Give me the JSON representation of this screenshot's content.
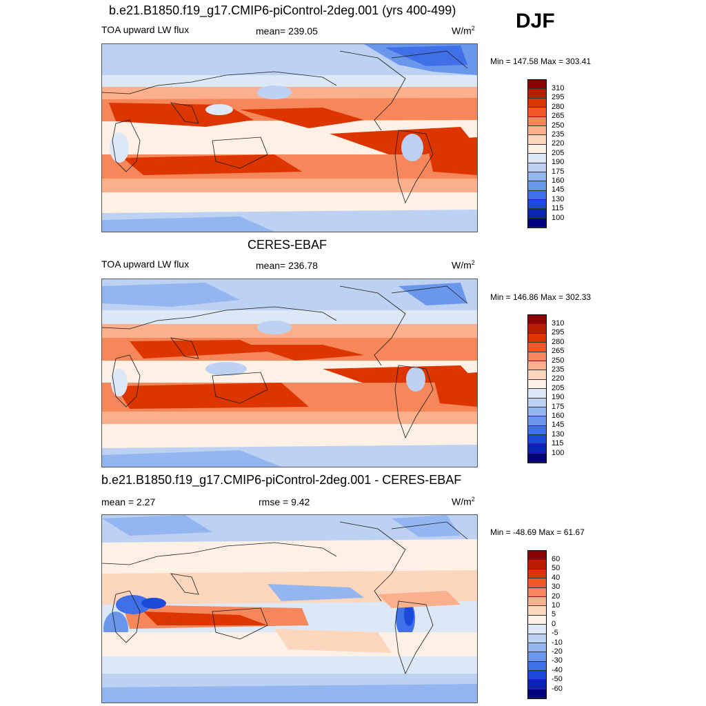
{
  "season": "DJF",
  "colors": {
    "abs_scale": [
      "#8b0000",
      "#b81d00",
      "#dc3500",
      "#f05a2a",
      "#f6875a",
      "#fab08c",
      "#fcd7bd",
      "#fdf0e5",
      "#dde8f7",
      "#bdd2f2",
      "#94b6f0",
      "#6a96eb",
      "#3f70e8",
      "#1c48dc",
      "#0a23b0",
      "#00007f"
    ],
    "diff_scale": [
      "#8b0000",
      "#b81d00",
      "#dc3500",
      "#f05a2a",
      "#f6875a",
      "#fab08c",
      "#fcd7bd",
      "#fdf0e5",
      "#dde8f7",
      "#bdd2f2",
      "#94b6f0",
      "#6a96eb",
      "#3f70e8",
      "#1c48dc",
      "#0a23b0",
      "#00007f"
    ],
    "continent_outline": "#1a1a1a"
  },
  "panels": [
    {
      "title": "b.e21.B1850.f19_g17.CMIP6-piControl-2deg.001 (yrs 400-499)",
      "left_label": "TOA upward LW flux",
      "center_label": "mean= 239.05",
      "units": "W/m",
      "units_sup": "2",
      "minmax": "Min = 147.58 Max = 303.41",
      "colorbar_labels": [
        "310",
        "295",
        "280",
        "265",
        "250",
        "235",
        "220",
        "205",
        "190",
        "175",
        "160",
        "145",
        "130",
        "115",
        "100"
      ]
    },
    {
      "title": "CERES-EBAF",
      "left_label": "TOA upward LW flux",
      "center_label": "mean= 236.78",
      "units": "W/m",
      "units_sup": "2",
      "minmax": "Min = 146.86 Max = 302.33",
      "colorbar_labels": [
        "310",
        "295",
        "280",
        "265",
        "250",
        "235",
        "220",
        "205",
        "190",
        "175",
        "160",
        "145",
        "130",
        "115",
        "100"
      ]
    },
    {
      "title": "b.e21.B1850.f19_g17.CMIP6-piControl-2deg.001 - CERES-EBAF",
      "left_label": "mean =   2.27",
      "center_label": "rmse =   9.42",
      "units": "W/m",
      "units_sup": "2",
      "minmax": "Min = -48.69 Max =  61.67",
      "colorbar_labels": [
        "60",
        "50",
        "40",
        "30",
        "20",
        "10",
        "5",
        "0",
        "-5",
        "-10",
        "-20",
        "-30",
        "-40",
        "-50",
        "-60"
      ]
    }
  ]
}
